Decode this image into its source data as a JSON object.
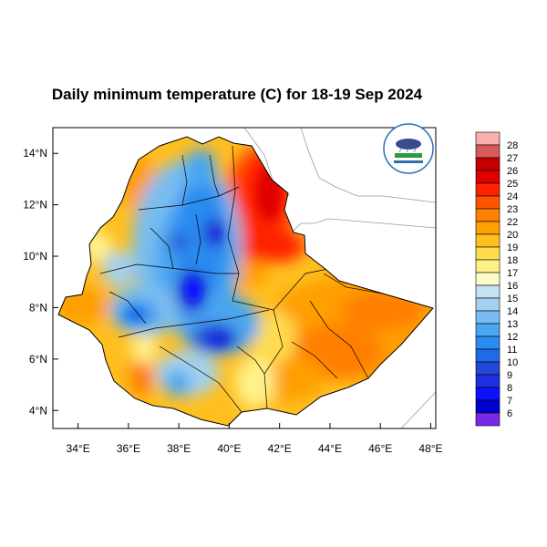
{
  "title": "Daily minimum temperature (C) for 18-19 Sep 2024",
  "map": {
    "lon_range": [
      33,
      48.2
    ],
    "lat_range": [
      3.3,
      15
    ],
    "x_ticks": [
      "34°E",
      "36°E",
      "38°E",
      "40°E",
      "42°E",
      "44°E",
      "46°E",
      "48°E"
    ],
    "x_tick_values": [
      34,
      36,
      38,
      40,
      42,
      44,
      46,
      48
    ],
    "y_ticks": [
      "14°N",
      "12°N",
      "10°N",
      "8°N",
      "6°N",
      "4°N"
    ],
    "y_tick_values": [
      14,
      12,
      10,
      8,
      6,
      4
    ],
    "logo_icon": "ethiopia-meteorology-institute-logo-icon"
  },
  "colorbar": {
    "labels": [
      "28",
      "27",
      "26",
      "25",
      "24",
      "23",
      "22",
      "20",
      "19",
      "18",
      "17",
      "16",
      "15",
      "14",
      "13",
      "12",
      "11",
      "10",
      "9",
      "8",
      "7",
      "6"
    ],
    "colors": [
      "#f7b0b0",
      "#d85a5a",
      "#c40000",
      "#e00000",
      "#ff2200",
      "#ff5500",
      "#ff7f00",
      "#ff9f00",
      "#ffbf1f",
      "#ffdb4d",
      "#fff18a",
      "#fffbc8",
      "#c6e2f2",
      "#a3d1ef",
      "#79bdf0",
      "#49a6f0",
      "#2b8cf0",
      "#1f6ae8",
      "#2248d6",
      "#1f2ee0",
      "#0b10ff",
      "#0000cc",
      "#7a28e8"
    ]
  }
}
